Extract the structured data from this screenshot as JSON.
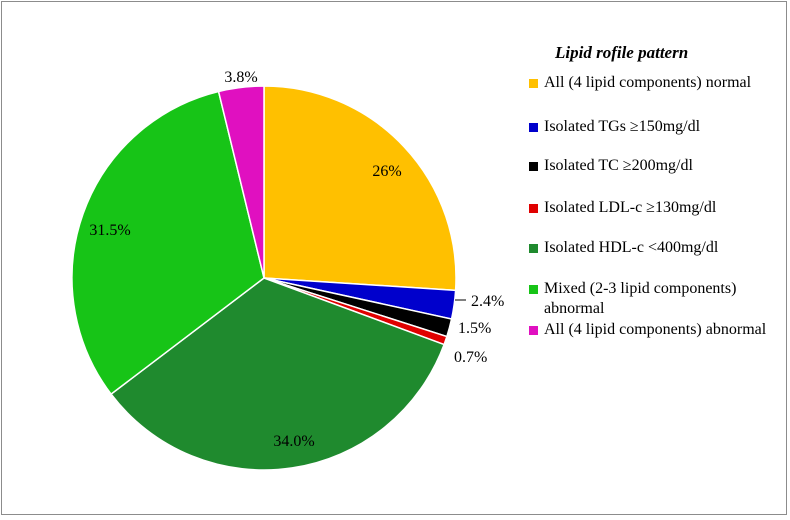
{
  "chart_data": {
    "type": "pie",
    "legend_title": "Lipid rofile pattern",
    "legend_position": "right",
    "slices": [
      {
        "name": "All (4 lipid components) normal",
        "value": 26,
        "label": "26%",
        "color": "#FFC000"
      },
      {
        "name": "Isolated  TGs ≥150mg/dl",
        "value": 2.4,
        "label": "2.4%",
        "color": "#0000CC"
      },
      {
        "name": "Isolated TC ≥200mg/dl",
        "value": 1.5,
        "label": "1.5%",
        "color": "#000000"
      },
      {
        "name": "Isolated LDL-c ≥130mg/dl",
        "value": 0.7,
        "label": "0.7%",
        "color": "#E00000"
      },
      {
        "name": "Isolated HDL-c <400mg/dl",
        "value": 34.0,
        "label": "34.0%",
        "color": "#1F8A2E"
      },
      {
        "name": "Mixed (2-3 lipid components) abnormal",
        "value": 31.5,
        "label": "31.5%",
        "color": "#17C417"
      },
      {
        "name": "All (4 lipid components) abnormal",
        "value": 3.8,
        "label": "3.8%",
        "color": "#E010C0"
      }
    ]
  }
}
